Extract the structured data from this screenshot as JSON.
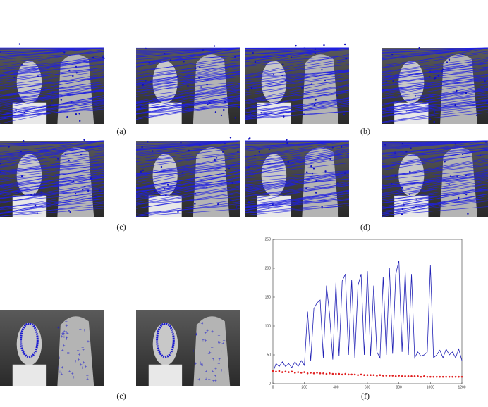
{
  "figure": {
    "labels": [
      "(a)",
      "(b)",
      "(e)",
      "(d)",
      "(e)",
      "(f)"
    ]
  },
  "chart_data": {
    "type": "line",
    "x": [
      0,
      20,
      40,
      60,
      80,
      100,
      120,
      140,
      160,
      180,
      200,
      220,
      240,
      260,
      280,
      300,
      320,
      340,
      360,
      380,
      400,
      420,
      440,
      460,
      480,
      500,
      520,
      540,
      560,
      580,
      600,
      620,
      640,
      660,
      680,
      700,
      720,
      740,
      760,
      780,
      800,
      820,
      840,
      860,
      880,
      900,
      920,
      940,
      960,
      980,
      1000,
      1020,
      1040,
      1060,
      1080,
      1100,
      1120,
      1140,
      1160,
      1180,
      1200
    ],
    "series": [
      {
        "color": "#1f1fb4",
        "values": [
          20,
          35,
          30,
          38,
          30,
          35,
          28,
          38,
          30,
          40,
          32,
          125,
          40,
          130,
          140,
          145,
          45,
          170,
          120,
          42,
          175,
          48,
          178,
          190,
          50,
          180,
          45,
          170,
          190,
          50,
          195,
          48,
          170,
          55,
          45,
          185,
          50,
          200,
          52,
          190,
          213,
          55,
          195,
          50,
          190,
          45,
          55,
          48,
          50,
          55,
          205,
          45,
          50,
          58,
          45,
          60,
          50,
          55,
          45,
          60,
          40
        ]
      },
      {
        "color": "#e02020",
        "values": [
          22,
          21,
          22,
          20,
          21,
          20,
          21,
          19,
          20,
          19,
          20,
          18,
          19,
          18,
          19,
          18,
          18,
          17,
          18,
          17,
          17,
          17,
          16,
          17,
          16,
          16,
          16,
          15,
          16,
          15,
          15,
          15,
          15,
          14,
          15,
          14,
          14,
          14,
          14,
          13,
          14,
          13,
          13,
          13,
          13,
          13,
          13,
          12,
          13,
          12,
          12,
          12,
          12,
          12,
          12,
          12,
          12,
          12,
          12,
          12,
          12
        ]
      }
    ],
    "xlim": [
      0,
      1200
    ],
    "xticks": [
      0,
      200,
      400,
      600,
      800,
      1000,
      1200
    ],
    "ylim": [
      0,
      250
    ],
    "yticks": [
      0,
      50,
      100,
      150,
      200,
      250
    ]
  }
}
